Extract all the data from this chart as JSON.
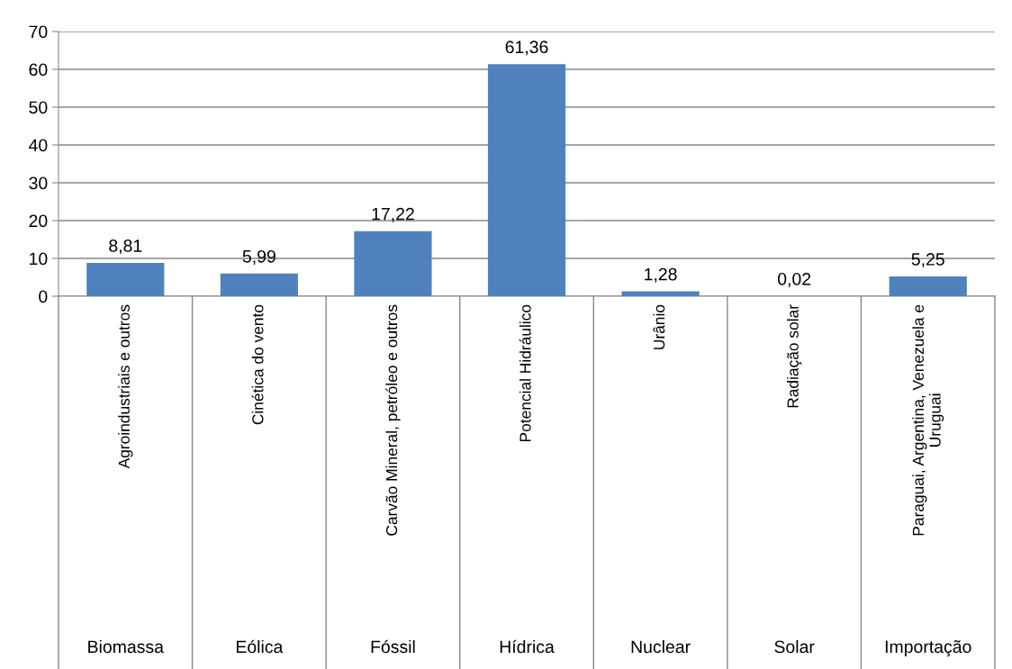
{
  "chart_data": {
    "type": "bar",
    "categories": [
      "Agroindustriais e outros",
      "Cinética do vento",
      "Carvão Mineral, petróleo e outros",
      "Potencial Hidráulico",
      "Urânio",
      "Radiação solar",
      "Paraguai, Argentina, Venezuela e Uruguai"
    ],
    "values": [
      8.81,
      5.99,
      17.22,
      61.36,
      1.28,
      0.02,
      5.25
    ],
    "value_labels": [
      "8,81",
      "5,99",
      "17,22",
      "61,36",
      "1,28",
      "0,02",
      "5,25"
    ],
    "color": "#4f81bd",
    "annotations": [
      "Biomassa",
      "Eólica",
      "Fóssil",
      "Hídrica",
      "Nuclear",
      "Solar",
      "Importação"
    ],
    "ylim": [
      0,
      70
    ],
    "yticks": [
      0,
      10,
      20,
      30,
      40,
      50,
      60,
      70
    ],
    "grid": "y",
    "legend": false
  }
}
